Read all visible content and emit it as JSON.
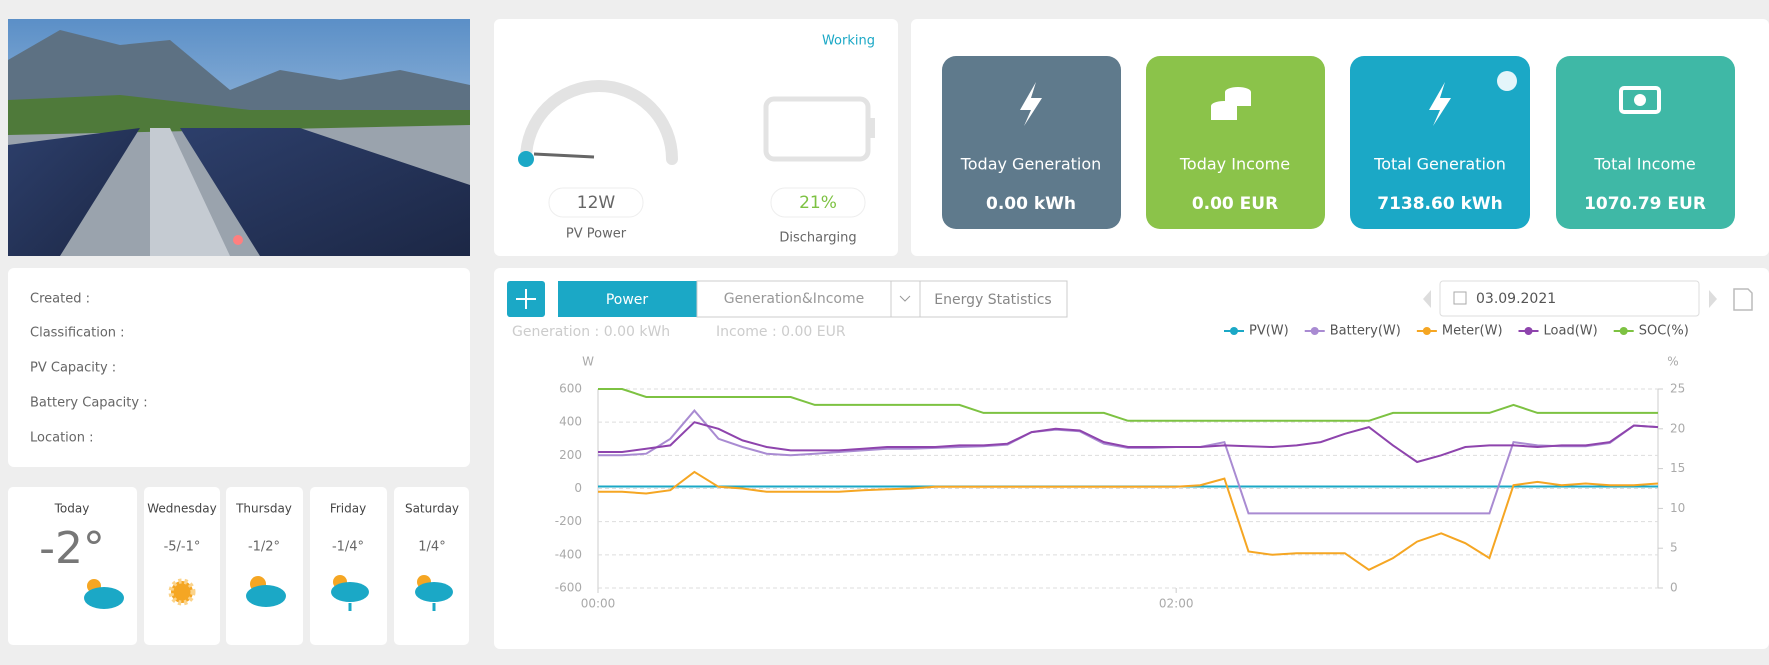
{
  "status": {
    "state": "Working",
    "pv_power": "12W",
    "pv_label": "PV Power",
    "battery_percent": "21%",
    "battery_state": "Discharging"
  },
  "cards": [
    {
      "title": "Today Generation",
      "value": "0.00 kWh"
    },
    {
      "title": "Today Income",
      "value": "0.00 EUR"
    },
    {
      "title": "Total Generation",
      "value": "7138.60 kWh"
    },
    {
      "title": "Total Income",
      "value": "1070.79 EUR"
    }
  ],
  "info": [
    "Created :",
    "Classification :",
    "PV Capacity :",
    "Battery Capacity :",
    "Location :"
  ],
  "weather": [
    {
      "day": "Today",
      "temp": "-2°"
    },
    {
      "day": "Wednesday",
      "temp": "-5/-1°"
    },
    {
      "day": "Thursday",
      "temp": "-1/2°"
    },
    {
      "day": "Friday",
      "temp": "-1/4°"
    },
    {
      "day": "Saturday",
      "temp": "1/4°"
    }
  ],
  "tabs": [
    "Power",
    "Generation&Income",
    "Energy Statistics"
  ],
  "date": "03.09.2021",
  "summary": {
    "generation": "Generation : 0.00 kWh",
    "income": "Income : 0.00 EUR"
  },
  "chart_data": {
    "type": "line",
    "ylabel": "W",
    "y2label": "%",
    "x": [
      0,
      5,
      10,
      15,
      20,
      25,
      30,
      35,
      40,
      45,
      50,
      55,
      60,
      65,
      70,
      75,
      80,
      85,
      90,
      95,
      100,
      105,
      110,
      115,
      120,
      125,
      130,
      135,
      140,
      145,
      150,
      155,
      160,
      165,
      170,
      175,
      180,
      185,
      190,
      195,
      200,
      205,
      210,
      215,
      220
    ],
    "xlim": [
      0,
      220
    ],
    "xticks": [
      {
        "value": 0,
        "label": "00:00"
      },
      {
        "value": 120,
        "label": "02:00"
      }
    ],
    "ylim": [
      -600,
      600
    ],
    "yticks": [
      -600,
      -400,
      -200,
      0,
      200,
      400,
      600
    ],
    "y2lim": [
      0,
      25
    ],
    "y2ticks": [
      0,
      5,
      10,
      15,
      20,
      25
    ],
    "grid": true,
    "series": [
      {
        "name": "PV(W)",
        "color": "#1ba8c6",
        "values": [
          12,
          12,
          12,
          12,
          12,
          12,
          12,
          12,
          12,
          12,
          12,
          12,
          12,
          12,
          12,
          12,
          12,
          12,
          12,
          12,
          12,
          12,
          12,
          12,
          12,
          12,
          12,
          12,
          12,
          12,
          12,
          12,
          12,
          12,
          12,
          12,
          12,
          12,
          12,
          12,
          12,
          12,
          12,
          12,
          12
        ]
      },
      {
        "name": "Battery(W)",
        "color": "#a98bd2",
        "values": [
          200,
          200,
          210,
          300,
          470,
          300,
          250,
          210,
          200,
          210,
          220,
          230,
          240,
          240,
          245,
          250,
          255,
          265,
          340,
          355,
          345,
          270,
          245,
          245,
          250,
          250,
          280,
          -150,
          -150,
          -150,
          -150,
          -150,
          -150,
          -150,
          -150,
          -150,
          -150,
          -150,
          280,
          260,
          255,
          255,
          275,
          380,
          370
        ]
      },
      {
        "name": "Meter(W)",
        "color": "#f5a623",
        "values": [
          -20,
          -20,
          -30,
          -10,
          100,
          10,
          0,
          -20,
          -20,
          -20,
          -20,
          -10,
          -5,
          0,
          10,
          10,
          10,
          10,
          10,
          10,
          10,
          10,
          10,
          10,
          10,
          20,
          60,
          -380,
          -400,
          -390,
          -390,
          -390,
          -490,
          -420,
          -320,
          -270,
          -330,
          -420,
          20,
          40,
          20,
          30,
          20,
          20,
          30
        ]
      },
      {
        "name": "Load(W)",
        "color": "#8e44ad",
        "values": [
          220,
          220,
          240,
          260,
          400,
          360,
          290,
          250,
          230,
          230,
          230,
          240,
          250,
          250,
          250,
          260,
          260,
          270,
          340,
          360,
          350,
          280,
          250,
          250,
          250,
          250,
          260,
          255,
          250,
          260,
          280,
          330,
          370,
          260,
          160,
          200,
          250,
          260,
          260,
          250,
          260,
          260,
          280,
          380,
          370
        ]
      },
      {
        "name": "SOC(%)",
        "color": "#7dc242",
        "axis": "y2",
        "values": [
          25,
          25,
          24,
          24,
          24,
          24,
          24,
          24,
          24,
          23,
          23,
          23,
          23,
          23,
          23,
          23,
          22,
          22,
          22,
          22,
          22,
          22,
          21,
          21,
          21,
          21,
          21,
          21,
          21,
          21,
          21,
          21,
          21,
          22,
          22,
          22,
          22,
          22,
          23,
          22,
          22,
          22,
          22,
          22,
          22
        ]
      }
    ]
  }
}
